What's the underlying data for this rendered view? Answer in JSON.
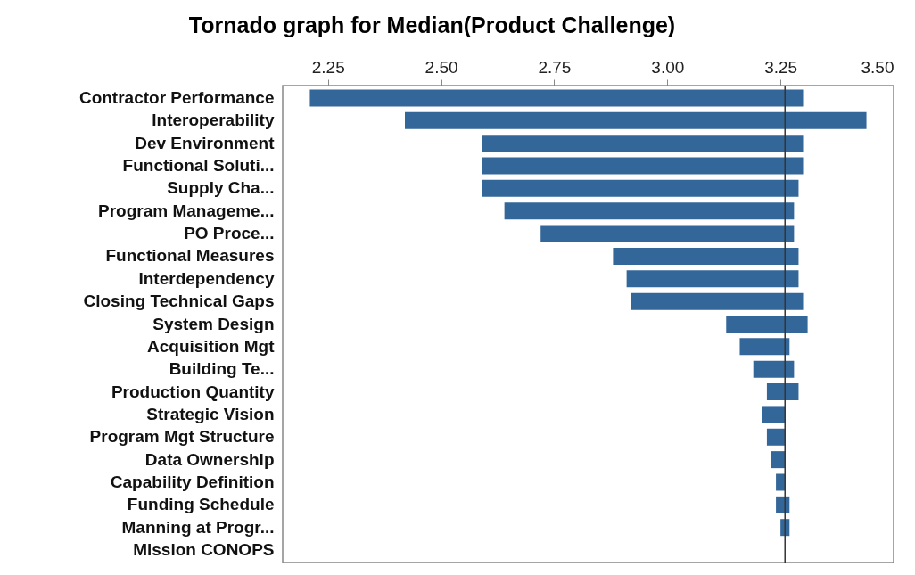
{
  "chart_data": {
    "type": "bar",
    "orientation": "horizontal",
    "title": "Tornado graph for Median(Product Challenge)",
    "categories": [
      "Contractor Performance",
      "Interoperability",
      "Dev Environment",
      "Functional Soluti...",
      "Supply Cha...",
      "Program Manageme...",
      "PO Proce...",
      "Functional Measures",
      "Interdependency",
      "Closing Technical Gaps",
      "System Design",
      "Acquisition Mgt",
      "Building Te...",
      "Production Quantity",
      "Strategic Vision",
      "Program Mgt Structure",
      "Data Ownership",
      "Capability Definition",
      "Funding Schedule",
      "Manning at Progr...",
      "Mission CONOPS"
    ],
    "base": [
      2.21,
      2.42,
      2.59,
      2.59,
      2.59,
      2.64,
      2.72,
      2.88,
      2.91,
      2.92,
      3.13,
      3.16,
      3.19,
      3.22,
      3.21,
      3.22,
      3.23,
      3.24,
      3.24,
      3.25,
      null
    ],
    "values": [
      1.09,
      1.02,
      0.71,
      0.71,
      0.7,
      0.64,
      0.56,
      0.41,
      0.38,
      0.38,
      0.18,
      0.11,
      0.09,
      0.07,
      0.05,
      0.04,
      0.03,
      0.02,
      0.03,
      0.02,
      null
    ],
    "color": "#336699",
    "xlim": [
      2.15,
      3.5
    ],
    "xticks": [
      2.25,
      {
        "value": 2.5,
        "label": "2.50"
      },
      2.75,
      {
        "value": 3,
        "label": "3.00"
      },
      3.25,
      {
        "value": 3.5,
        "label": "3.50"
      }
    ],
    "ref_lines": [
      {
        "axis": "x",
        "value": 3.26,
        "color": "#333333"
      }
    ],
    "grid": false
  }
}
